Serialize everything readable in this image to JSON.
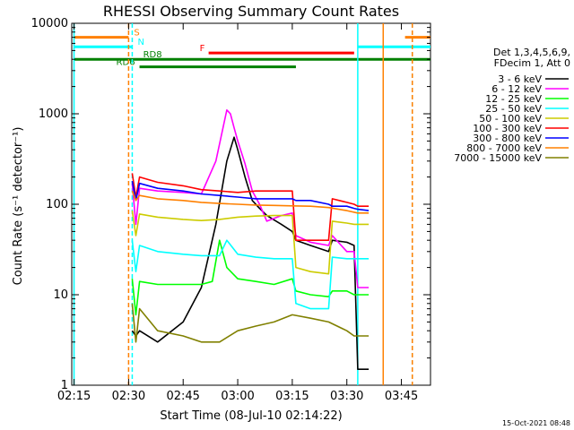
{
  "chart_data": {
    "type": "line",
    "title": "RHESSI Observing Summary Count Rates",
    "xlabel": "Start Time (08-Jul-10 02:14:22)",
    "ylabel": "Count Rate (s⁻¹ detector⁻¹)",
    "y_scale": "log",
    "xlim": [
      "02:15",
      "03:53"
    ],
    "ylim": [
      1,
      10000
    ],
    "x_ticks": [
      "02:15",
      "02:30",
      "02:45",
      "03:00",
      "03:15",
      "03:30",
      "03:45"
    ],
    "y_ticks": [
      "1",
      "10",
      "100",
      "1000",
      "10000"
    ],
    "legend_header": [
      "Det 1,3,4,5,6,9,",
      "FDecim 1, Att 0"
    ],
    "legend_position": "right",
    "timestamp": "15-Oct-2021 08:48",
    "series": [
      {
        "name": "3 - 6 keV",
        "color": "#000000",
        "x": [
          "02:31",
          "02:32",
          "02:33",
          "02:38",
          "02:45",
          "02:50",
          "02:54",
          "02:57",
          "02:59",
          "03:00",
          "03:02",
          "03:04",
          "03:06",
          "03:08",
          "03:12",
          "03:15",
          "03:16",
          "03:20",
          "03:25",
          "03:26",
          "03:30",
          "03:32",
          "03:33",
          "03:36"
        ],
        "values": [
          4,
          3.5,
          4,
          3,
          5,
          12,
          60,
          300,
          550,
          400,
          200,
          110,
          90,
          75,
          60,
          50,
          40,
          35,
          30,
          40,
          38,
          35,
          1.5,
          1.5
        ]
      },
      {
        "name": "6 - 12 keV",
        "color": "#ff00ff",
        "x": [
          "02:31",
          "02:32",
          "02:33",
          "02:38",
          "02:45",
          "02:50",
          "02:54",
          "02:57",
          "02:58",
          "02:59",
          "03:00",
          "03:02",
          "03:04",
          "03:06",
          "03:08",
          "03:12",
          "03:15",
          "03:16",
          "03:20",
          "03:25",
          "03:26",
          "03:30",
          "03:32",
          "03:33",
          "03:36"
        ],
        "values": [
          170,
          60,
          150,
          140,
          135,
          130,
          300,
          1100,
          1000,
          700,
          500,
          280,
          140,
          100,
          65,
          75,
          80,
          45,
          38,
          35,
          45,
          30,
          30,
          12,
          12
        ]
      },
      {
        "name": "12 - 25 keV",
        "color": "#00ff00",
        "x": [
          "02:31",
          "02:32",
          "02:33",
          "02:38",
          "02:45",
          "02:50",
          "02:53",
          "02:55",
          "02:57",
          "03:00",
          "03:05",
          "03:10",
          "03:15",
          "03:16",
          "03:20",
          "03:25",
          "03:26",
          "03:30",
          "03:32",
          "03:33",
          "03:36"
        ],
        "values": [
          15,
          6,
          14,
          13,
          13,
          13,
          14,
          40,
          20,
          15,
          14,
          13,
          15,
          11,
          10,
          9.5,
          11,
          11,
          10,
          10,
          10
        ]
      },
      {
        "name": "25 - 50 keV",
        "color": "#00ffff",
        "x": [
          "02:31",
          "02:32",
          "02:33",
          "02:38",
          "02:45",
          "02:50",
          "02:55",
          "02:57",
          "03:00",
          "03:05",
          "03:10",
          "03:15",
          "03:16",
          "03:20",
          "03:25",
          "03:26",
          "03:30",
          "03:32",
          "03:33",
          "03:36"
        ],
        "values": [
          40,
          18,
          35,
          30,
          28,
          27,
          27,
          40,
          28,
          26,
          25,
          25,
          8,
          7,
          7,
          26,
          25,
          25,
          25,
          25
        ]
      },
      {
        "name": "50 - 100 keV",
        "color": "#cccc00",
        "x": [
          "02:31",
          "02:32",
          "02:33",
          "02:38",
          "02:45",
          "02:50",
          "02:55",
          "03:00",
          "03:05",
          "03:10",
          "03:15",
          "03:16",
          "03:20",
          "03:25",
          "03:26",
          "03:30",
          "03:32",
          "03:33",
          "03:36"
        ],
        "values": [
          85,
          45,
          78,
          72,
          68,
          66,
          68,
          72,
          74,
          75,
          75,
          20,
          18,
          17,
          65,
          62,
          60,
          60,
          60
        ]
      },
      {
        "name": "100 - 300 keV",
        "color": "#ff0000",
        "x": [
          "02:31",
          "02:32",
          "02:33",
          "02:38",
          "02:45",
          "02:50",
          "02:55",
          "03:00",
          "03:05",
          "03:10",
          "03:15",
          "03:16",
          "03:20",
          "03:25",
          "03:26",
          "03:30",
          "03:32",
          "03:33",
          "03:36"
        ],
        "values": [
          220,
          120,
          200,
          175,
          160,
          145,
          140,
          135,
          140,
          140,
          140,
          40,
          40,
          40,
          115,
          105,
          100,
          95,
          95
        ]
      },
      {
        "name": "300 - 800 keV",
        "color": "#0000ff",
        "x": [
          "02:31",
          "02:32",
          "02:33",
          "02:38",
          "02:45",
          "02:50",
          "02:55",
          "03:00",
          "03:05",
          "03:10",
          "03:15",
          "03:16",
          "03:20",
          "03:25",
          "03:26",
          "03:30",
          "03:32",
          "03:33",
          "03:36"
        ],
        "values": [
          180,
          110,
          170,
          150,
          140,
          130,
          125,
          120,
          115,
          115,
          115,
          110,
          110,
          100,
          95,
          95,
          90,
          88,
          85
        ]
      },
      {
        "name": "800 - 7000 keV",
        "color": "#ff8000",
        "x": [
          "02:31",
          "02:32",
          "02:33",
          "02:38",
          "02:45",
          "02:50",
          "02:55",
          "03:00",
          "03:05",
          "03:10",
          "03:15",
          "03:20",
          "03:25",
          "03:30",
          "03:33",
          "03:36"
        ],
        "values": [
          140,
          110,
          125,
          115,
          110,
          105,
          102,
          100,
          98,
          97,
          96,
          95,
          92,
          85,
          80,
          80
        ]
      },
      {
        "name": "7000 - 15000 keV",
        "color": "#808000",
        "x": [
          "02:31",
          "02:32",
          "02:33",
          "02:38",
          "02:45",
          "02:50",
          "02:55",
          "03:00",
          "03:05",
          "03:10",
          "03:15",
          "03:20",
          "03:25",
          "03:30",
          "03:32",
          "03:33",
          "03:36"
        ],
        "values": [
          8,
          3,
          7,
          4,
          3.5,
          3,
          3,
          4,
          4.5,
          5,
          6,
          5.5,
          5,
          4,
          3.5,
          3.5,
          3.5
        ]
      }
    ],
    "status_bars": [
      {
        "label": "S",
        "color": "#ff8000",
        "level": 7000,
        "spans": [
          [
            "02:15",
            "02:30"
          ],
          [
            "03:46",
            "03:53"
          ]
        ]
      },
      {
        "label": "N",
        "color": "#00ffff",
        "level": 5500,
        "spans": [
          [
            "02:15",
            "02:31"
          ],
          [
            "03:33",
            "03:53"
          ]
        ]
      },
      {
        "label": "F",
        "color": "#ff0000",
        "level": 4700,
        "spans": [
          [
            "02:52",
            "03:32"
          ]
        ]
      },
      {
        "label": "RD8",
        "color": "#008000",
        "level": 4000,
        "spans": [
          [
            "02:15",
            "03:53"
          ]
        ]
      },
      {
        "label": "RD6",
        "color": "#008000",
        "level": 3300,
        "spans": [
          [
            "02:33",
            "03:16"
          ]
        ]
      }
    ],
    "vertical_markers": [
      {
        "x": "02:15",
        "color": "#00ffff",
        "style": "solid"
      },
      {
        "x": "02:30",
        "color": "#ff8000",
        "style": "dashed"
      },
      {
        "x": "02:31",
        "color": "#00ffff",
        "style": "dashed"
      },
      {
        "x": "03:33",
        "color": "#00ffff",
        "style": "solid"
      },
      {
        "x": "03:40",
        "color": "#ff8000",
        "style": "solid"
      },
      {
        "x": "03:48",
        "color": "#00ffff",
        "style": "dashed"
      },
      {
        "x": "03:48",
        "color": "#ff8000",
        "style": "dashed"
      }
    ]
  }
}
